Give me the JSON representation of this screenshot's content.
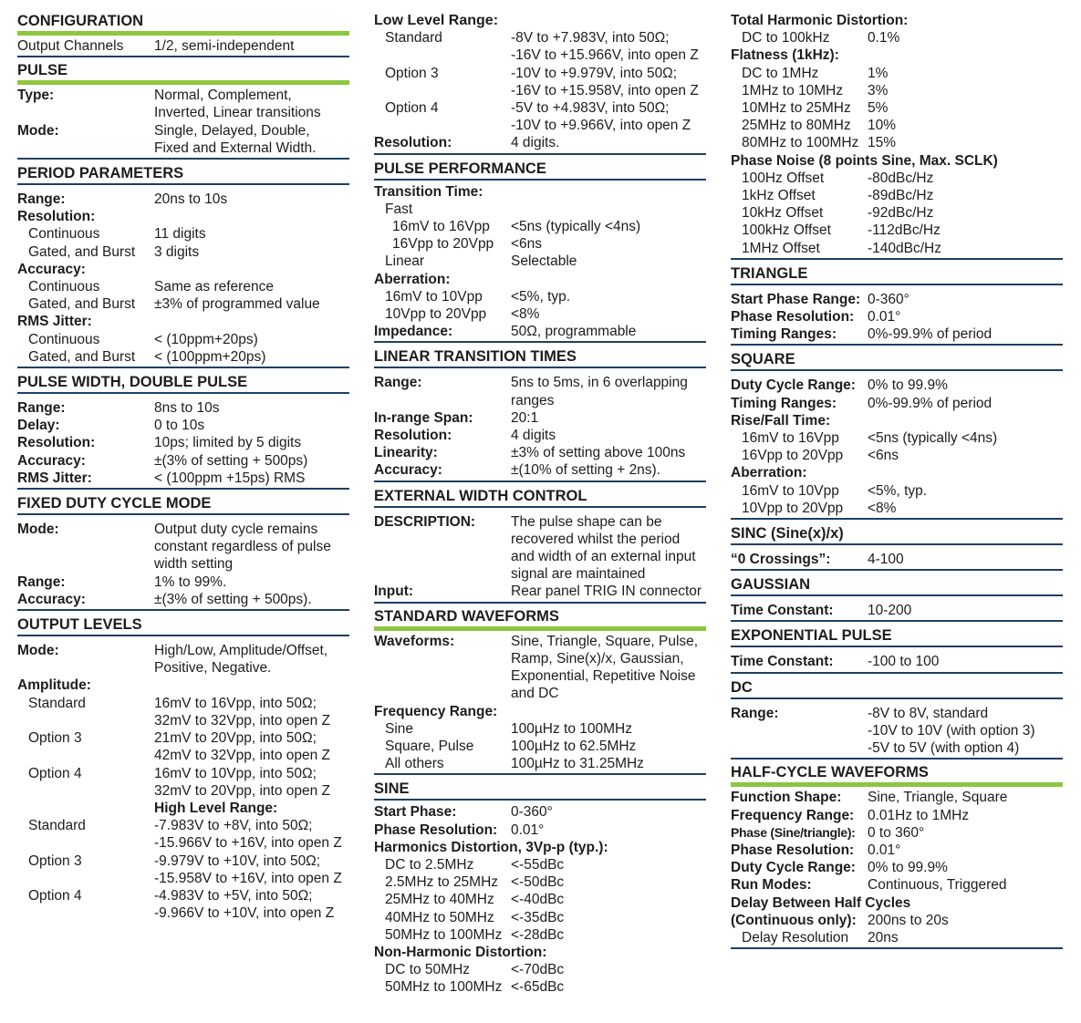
{
  "col1": {
    "configuration": {
      "title": "CONFIGURATION",
      "label": "Output Channels",
      "value": "1/2, semi-independent"
    },
    "pulse": {
      "title": "PULSE",
      "type_label": "Type:",
      "type_value": "Normal, Complement,\nInverted, Linear transitions",
      "mode_label": "Mode:",
      "mode_value": "Single, Delayed, Double,\nFixed and External Width."
    },
    "period": {
      "title": "PERIOD PARAMETERS",
      "rows": [
        {
          "l": "Range:",
          "v": "20ns to 10s",
          "b": true,
          "ind": 0
        },
        {
          "l": "Resolution:",
          "v": "",
          "b": true,
          "ind": 0
        },
        {
          "l": "Continuous",
          "v": "11 digits",
          "b": false,
          "ind": 1
        },
        {
          "l": "Gated, and Burst",
          "v": "3 digits",
          "b": false,
          "ind": 1
        },
        {
          "l": "Accuracy:",
          "v": "",
          "b": true,
          "ind": 0
        },
        {
          "l": "Continuous",
          "v": "Same as reference",
          "b": false,
          "ind": 1
        },
        {
          "l": "Gated, and Burst",
          "v": "±3% of programmed value",
          "b": false,
          "ind": 1
        },
        {
          "l": "RMS Jitter:",
          "v": "",
          "b": true,
          "ind": 0
        },
        {
          "l": "Continuous",
          "v": "< (10ppm+20ps)",
          "b": false,
          "ind": 1
        },
        {
          "l": "Gated, and Burst",
          "v": "< (100ppm+20ps)",
          "b": false,
          "ind": 1
        }
      ]
    },
    "width": {
      "title": "PULSE WIDTH, DOUBLE PULSE",
      "rows": [
        {
          "l": "Range:",
          "v": "8ns to 10s",
          "b": true,
          "ind": 0
        },
        {
          "l": "Delay:",
          "v": "0 to 10s",
          "b": true,
          "ind": 0
        },
        {
          "l": "Resolution:",
          "v": "10ps; limited by 5 digits",
          "b": true,
          "ind": 0
        },
        {
          "l": "Accuracy:",
          "v": "±(3% of setting + 500ps)",
          "b": true,
          "ind": 0
        },
        {
          "l": "RMS Jitter:",
          "v": "< (100ppm +15ps) RMS",
          "b": true,
          "ind": 0
        }
      ]
    },
    "duty": {
      "title": "FIXED DUTY CYCLE MODE",
      "rows": [
        {
          "l": "Mode:",
          "v": "Output duty cycle remains\nconstant regardless of pulse\nwidth setting",
          "b": true,
          "ind": 0
        },
        {
          "l": "Range:",
          "v": "1% to 99%.",
          "b": true,
          "ind": 0
        },
        {
          "l": "Accuracy:",
          "v": "±(3% of setting + 500ps).",
          "b": true,
          "ind": 0
        }
      ]
    },
    "levels": {
      "title": "OUTPUT LEVELS",
      "rows": [
        {
          "l": "Mode:",
          "v": "High/Low, Amplitude/Offset,\nPositive, Negative.",
          "b": true,
          "ind": 0
        },
        {
          "l": "Amplitude:",
          "v": "",
          "b": true,
          "ind": 0
        },
        {
          "l": "Standard",
          "v": "16mV to 16Vpp, into 50Ω;\n32mV to 32Vpp, into open Z",
          "b": false,
          "ind": 1
        },
        {
          "l": "Option 3",
          "v": "21mV to 20Vpp, into 50Ω;\n42mV to 32Vpp, into open Z",
          "b": false,
          "ind": 1
        },
        {
          "l": "Option 4",
          "v": "16mV to 10Vpp, into 50Ω;\n32mV to 20Vpp, into open Z",
          "b": false,
          "ind": 1
        }
      ],
      "high_title": "High Level Range:",
      "high_rows": [
        {
          "l": "Standard",
          "v": "-7.983V to +8V, into 50Ω;\n-15.966V to +16V, into open Z",
          "b": false,
          "ind": 1
        },
        {
          "l": "Option 3",
          "v": "-9.979V to +10V, into 50Ω;\n-15.958V to +16V, into open Z",
          "b": false,
          "ind": 1
        },
        {
          "l": "Option 4",
          "v": "-4.983V to +5V, into 50Ω;\n-9.966V to +10V, into open Z",
          "b": false,
          "ind": 1
        }
      ]
    }
  },
  "col2": {
    "low": {
      "title": "Low Level Range:",
      "rows": [
        {
          "l": "Standard",
          "v": "-8V to +7.983V, into 50Ω;\n-16V to +15.966V, into open Z",
          "b": false,
          "ind": 1
        },
        {
          "l": "Option 3",
          "v": "-10V to +9.979V, into 50Ω;\n-16V to +15.958V, into open Z",
          "b": false,
          "ind": 1
        },
        {
          "l": "Option 4",
          "v": "-5V to +4.983V, into 50Ω;\n-10V to +9.966V, into open Z",
          "b": false,
          "ind": 1
        },
        {
          "l": "Resolution:",
          "v": "4 digits.",
          "b": true,
          "ind": 0
        }
      ]
    },
    "perf": {
      "title": "PULSE PERFORMANCE",
      "rows": [
        {
          "l": "Transition Time:",
          "v": "",
          "b": true,
          "ind": 0
        },
        {
          "l": "Fast",
          "v": "",
          "b": false,
          "ind": 1
        },
        {
          "l": "16mV to 16Vpp",
          "v": "<5ns (typically <4ns)",
          "b": false,
          "ind": 2
        },
        {
          "l": "16Vpp to 20Vpp",
          "v": "<6ns",
          "b": false,
          "ind": 2
        },
        {
          "l": "Linear",
          "v": "Selectable",
          "b": false,
          "ind": 1
        },
        {
          "l": "Aberration:",
          "v": "",
          "b": true,
          "ind": 0
        },
        {
          "l": "16mV to 10Vpp",
          "v": "<5%, typ.",
          "b": false,
          "ind": 1
        },
        {
          "l": "10Vpp to 20Vpp",
          "v": "<8%",
          "b": false,
          "ind": 1
        },
        {
          "l": "Impedance:",
          "v": "50Ω, programmable",
          "b": true,
          "ind": 0
        }
      ]
    },
    "linear": {
      "title": "LINEAR TRANSITION TIMES",
      "rows": [
        {
          "l": "Range:",
          "v": "5ns to 5ms, in 6 overlapping\nranges",
          "b": true,
          "ind": 0
        },
        {
          "l": "In-range Span:",
          "v": "20:1",
          "b": true,
          "ind": 0
        },
        {
          "l": "Resolution:",
          "v": "4 digits",
          "b": true,
          "ind": 0
        },
        {
          "l": "Linearity:",
          "v": "±3% of setting above 100ns",
          "b": true,
          "ind": 0
        },
        {
          "l": "Accuracy:",
          "v": "±(10% of setting + 2ns).",
          "b": true,
          "ind": 0
        }
      ]
    },
    "ext": {
      "title": "EXTERNAL WIDTH CONTROL",
      "rows": [
        {
          "l": "DESCRIPTION:",
          "v": "The pulse shape can be\nrecovered whilst the period\nand width of an external input\nsignal are maintained",
          "b": true,
          "ind": 0
        },
        {
          "l": "Input:",
          "v": "Rear panel TRIG IN connector",
          "b": true,
          "ind": 0
        }
      ]
    },
    "std": {
      "title": "STANDARD WAVEFORMS",
      "rows": [
        {
          "l": "Waveforms:",
          "v": "Sine, Triangle, Square, Pulse,\nRamp, Sine(x)/x, Gaussian,\nExponential, Repetitive Noise\nand DC",
          "b": true,
          "ind": 0
        },
        {
          "l": "Frequency Range:",
          "v": "",
          "b": true,
          "ind": 0
        },
        {
          "l": "Sine",
          "v": "100µHz to 100MHz",
          "b": false,
          "ind": 1
        },
        {
          "l": "Square, Pulse",
          "v": "100µHz to 62.5MHz",
          "b": false,
          "ind": 1
        },
        {
          "l": "All others",
          "v": "100µHz to 31.25MHz",
          "b": false,
          "ind": 1
        }
      ]
    },
    "sine": {
      "title": "SINE",
      "rows": [
        {
          "l": "Start Phase:",
          "v": "0-360°",
          "b": true,
          "ind": 0
        },
        {
          "l": "Phase Resolution:",
          "v": "0.01°",
          "b": true,
          "ind": 0
        },
        {
          "l": "Harmonics Distortion, 3Vp-p (typ.):",
          "v": "",
          "b": true,
          "ind": 0
        },
        {
          "l": "DC to 2.5MHz",
          "v": "<-55dBc",
          "b": false,
          "ind": 1
        },
        {
          "l": "2.5MHz to 25MHz",
          "v": "<-50dBc",
          "b": false,
          "ind": 1
        },
        {
          "l": "25MHz to 40MHz",
          "v": "<-40dBc",
          "b": false,
          "ind": 1
        },
        {
          "l": "40MHz to 50MHz",
          "v": "<-35dBc",
          "b": false,
          "ind": 1
        },
        {
          "l": "50MHz to 100MHz",
          "v": "<-28dBc",
          "b": false,
          "ind": 1
        },
        {
          "l": "Non-Harmonic Distortion:",
          "v": "",
          "b": true,
          "ind": 0
        },
        {
          "l": "DC to 50MHz",
          "v": "<-70dBc",
          "b": false,
          "ind": 1
        },
        {
          "l": "50MHz to 100MHz",
          "v": "<-65dBc",
          "b": false,
          "ind": 1
        }
      ]
    }
  },
  "col3": {
    "thd": {
      "rows": [
        {
          "l": "Total Harmonic Distortion:",
          "v": "",
          "b": true,
          "ind": 0
        },
        {
          "l": "DC to 100kHz",
          "v": "0.1%",
          "b": false,
          "ind": 1
        },
        {
          "l": "Flatness (1kHz):",
          "v": "",
          "b": true,
          "ind": 0
        },
        {
          "l": "DC to 1MHz",
          "v": "1%",
          "b": false,
          "ind": 1
        },
        {
          "l": "1MHz to 10MHz",
          "v": "3%",
          "b": false,
          "ind": 1
        },
        {
          "l": "10MHz to 25MHz",
          "v": "5%",
          "b": false,
          "ind": 1
        },
        {
          "l": "25MHz to 80MHz",
          "v": "10%",
          "b": false,
          "ind": 1
        },
        {
          "l": "80MHz to 100MHz",
          "v": "15%",
          "b": false,
          "ind": 1
        },
        {
          "l": "Phase Noise (8 points Sine, Max. SCLK)",
          "v": "",
          "b": true,
          "ind": 0
        },
        {
          "l": "100Hz Offset",
          "v": "-80dBc/Hz",
          "b": false,
          "ind": 1
        },
        {
          "l": "1kHz Offset",
          "v": "-89dBc/Hz",
          "b": false,
          "ind": 1
        },
        {
          "l": "10kHz Offset",
          "v": "-92dBc/Hz",
          "b": false,
          "ind": 1
        },
        {
          "l": "100kHz Offset",
          "v": "-112dBc/Hz",
          "b": false,
          "ind": 1
        },
        {
          "l": "1MHz Offset",
          "v": "-140dBc/Hz",
          "b": false,
          "ind": 1
        }
      ]
    },
    "triangle": {
      "title": "TRIANGLE",
      "rows": [
        {
          "l": "Start Phase Range:",
          "v": "0-360°",
          "b": true,
          "ind": 0
        },
        {
          "l": "Phase Resolution:",
          "v": "0.01°",
          "b": true,
          "ind": 0
        },
        {
          "l": "Timing Ranges:",
          "v": "0%-99.9% of period",
          "b": true,
          "ind": 0
        }
      ]
    },
    "square": {
      "title": "SQUARE",
      "rows": [
        {
          "l": "Duty Cycle Range:",
          "v": "0% to 99.9%",
          "b": true,
          "ind": 0
        },
        {
          "l": "Timing Ranges:",
          "v": "0%-99.9% of period",
          "b": true,
          "ind": 0
        },
        {
          "l": "Rise/Fall Time:",
          "v": "",
          "b": true,
          "ind": 0
        },
        {
          "l": "16mV to 16Vpp",
          "v": "<5ns (typically <4ns)",
          "b": false,
          "ind": 1
        },
        {
          "l": "16Vpp to 20Vpp",
          "v": "<6ns",
          "b": false,
          "ind": 1
        },
        {
          "l": "Aberration:",
          "v": "",
          "b": true,
          "ind": 0
        },
        {
          "l": "16mV to 10Vpp",
          "v": "<5%, typ.",
          "b": false,
          "ind": 1
        },
        {
          "l": "10Vpp to 20Vpp",
          "v": "<8%",
          "b": false,
          "ind": 1
        }
      ]
    },
    "sinc": {
      "title": "SINC (Sine(x)/x)",
      "label": "“0 Crossings”:",
      "value": "4-100"
    },
    "gauss": {
      "title": "GAUSSIAN",
      "label": "Time Constant:",
      "value": "10-200"
    },
    "expo": {
      "title": "EXPONENTIAL PULSE",
      "label": "Time Constant:",
      "value": "-100 to 100"
    },
    "dc": {
      "title": "DC",
      "label": "Range:",
      "value": "-8V to 8V, standard\n-10V to 10V (with option 3)\n-5V to 5V (with option 4)"
    },
    "half": {
      "title": "HALF-CYCLE WAVEFORMS",
      "rows": [
        {
          "l": "Function Shape:",
          "v": "Sine, Triangle, Square",
          "b": true,
          "ind": 0
        },
        {
          "l": "Frequency Range:",
          "v": "0.01Hz to 1MHz",
          "b": true,
          "ind": 0
        },
        {
          "l": "Phase (Sine/triangle):",
          "v": "0 to 360°",
          "b": true,
          "ind": 0,
          "small": true
        },
        {
          "l": "Phase Resolution:",
          "v": "0.01°",
          "b": true,
          "ind": 0
        },
        {
          "l": "Duty Cycle Range:",
          "v": "0% to 99.9%",
          "b": true,
          "ind": 0
        },
        {
          "l": "Run Modes:",
          "v": "Continuous, Triggered",
          "b": true,
          "ind": 0
        },
        {
          "l": "Delay Between Half Cycles",
          "v": "",
          "b": true,
          "ind": 0
        },
        {
          "l": "(Continuous only):",
          "v": "200ns to 20s",
          "b": true,
          "ind": 0
        },
        {
          "l": "Delay Resolution",
          "v": "20ns",
          "b": false,
          "ind": 1
        }
      ]
    }
  }
}
